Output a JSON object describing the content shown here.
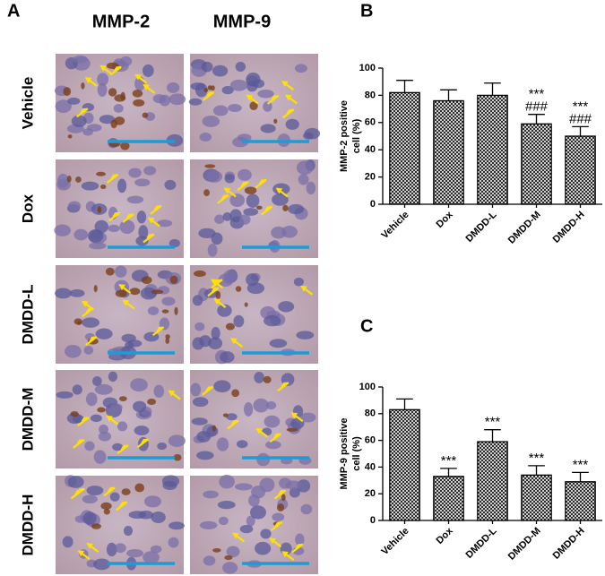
{
  "panel_a": {
    "label": "A",
    "columns": [
      "MMP-2",
      "MMP-9"
    ],
    "rows": [
      "Vehicle",
      "Dox",
      "DMDD-L",
      "DMDD-M",
      "DMDD-H"
    ]
  },
  "chart_data": [
    {
      "type": "bar",
      "panel": "B",
      "y_label_lines": [
        "MMP-2 positive",
        "cell (%)"
      ],
      "categories": [
        "Vehicle",
        "Dox",
        "DMDD-L",
        "DMDD-M",
        "DMDD-H"
      ],
      "values": [
        82,
        76,
        80,
        59,
        50
      ],
      "errors": [
        9,
        8,
        9,
        7,
        7
      ],
      "annotations": [
        [],
        [],
        [],
        [
          "***",
          "###"
        ],
        [
          "***",
          "###"
        ]
      ],
      "color": "#000000",
      "ylim": [
        0,
        100
      ],
      "yticks": [
        0,
        20,
        40,
        60,
        80,
        100
      ]
    },
    {
      "type": "bar",
      "panel": "C",
      "y_label_lines": [
        "MMP-9 positive",
        "cell (%)"
      ],
      "categories": [
        "Vehicle",
        "Dox",
        "DMDD-L",
        "DMDD-M",
        "DMDD-H"
      ],
      "values": [
        83,
        33,
        59,
        34,
        29
      ],
      "errors": [
        8,
        6,
        9,
        7,
        7
      ],
      "annotations": [
        [],
        [
          "***"
        ],
        [
          "***"
        ],
        [
          "***"
        ],
        [
          "***"
        ]
      ],
      "color": "#000000",
      "ylim": [
        0,
        100
      ],
      "yticks": [
        0,
        20,
        40,
        60,
        80,
        100
      ]
    }
  ]
}
